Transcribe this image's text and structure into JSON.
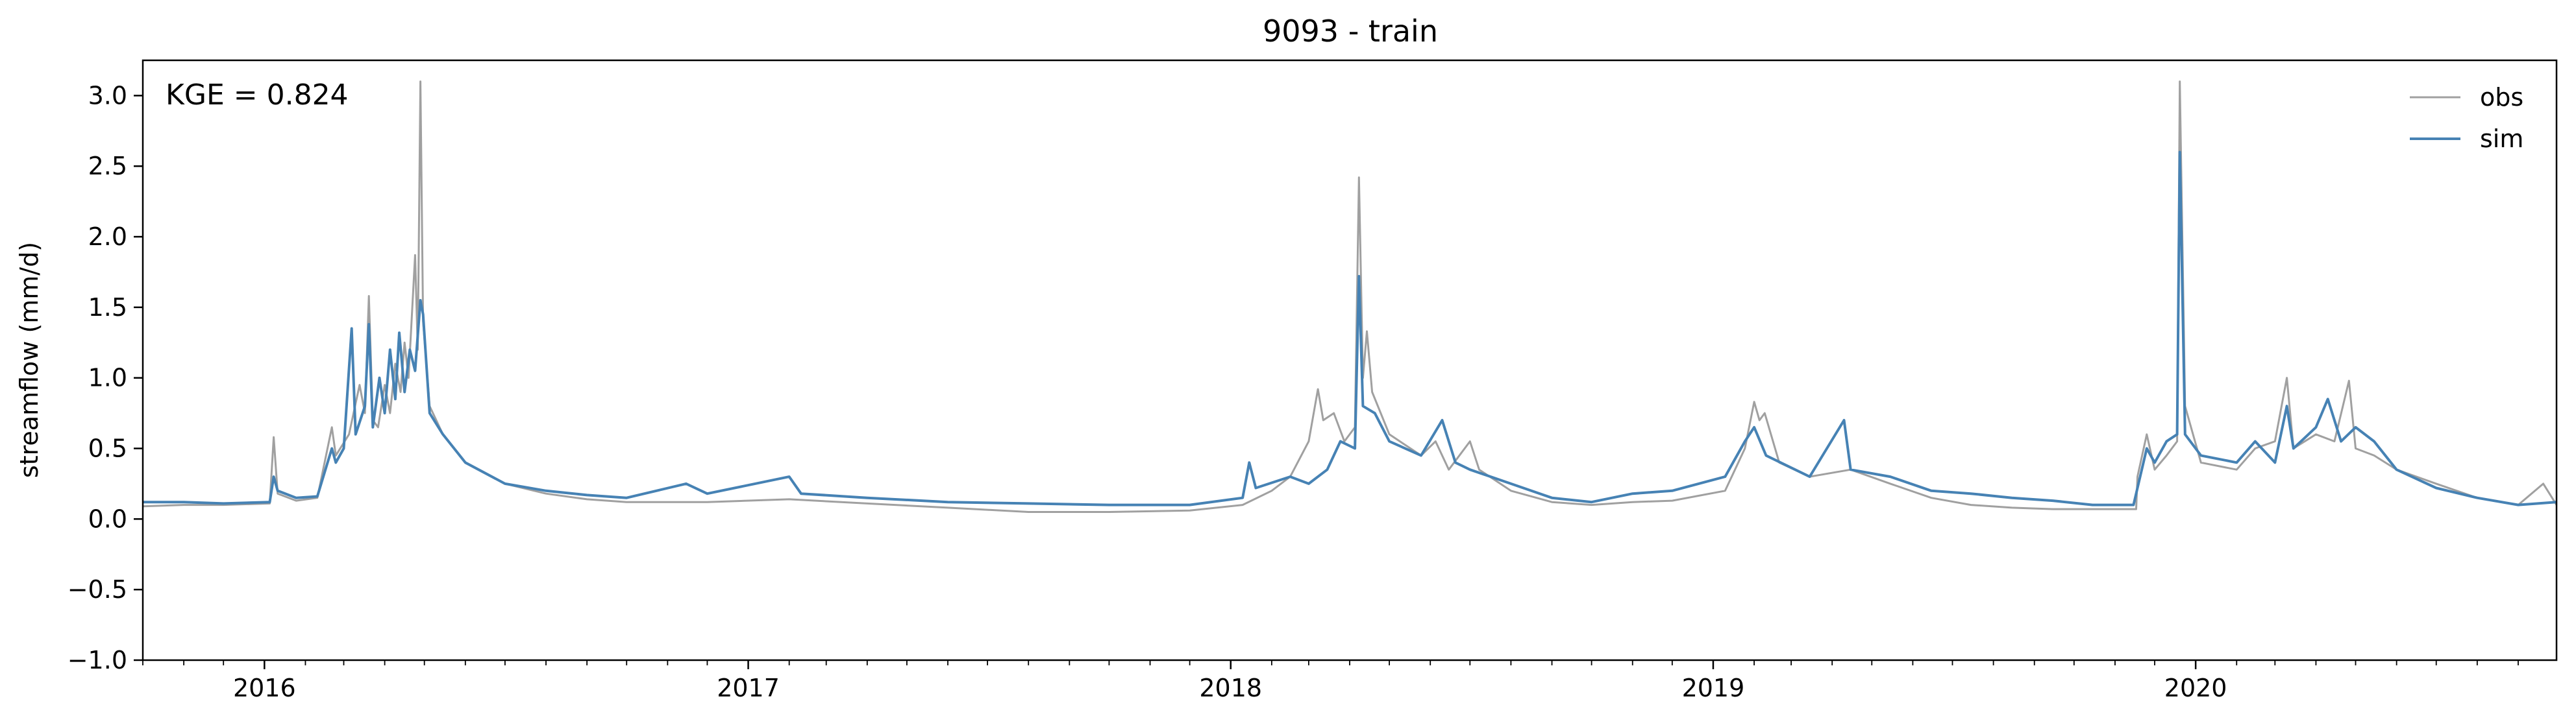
{
  "chart_data": {
    "type": "line",
    "title": "9093 - train",
    "xlabel": "",
    "ylabel": "streamflow (mm/d)",
    "annotation": "KGE = 0.824",
    "xlim": [
      "2015-10-01",
      "2020-09-30"
    ],
    "ylim": [
      -1.0,
      3.25
    ],
    "yticks": [
      -1.0,
      -0.5,
      0.0,
      0.5,
      1.0,
      1.5,
      2.0,
      2.5,
      3.0
    ],
    "ytick_labels": [
      "−1.0",
      "−0.5",
      "0.0",
      "0.5",
      "1.0",
      "1.5",
      "2.0",
      "2.5",
      "3.0"
    ],
    "xticks": [
      "2016-01-01",
      "2017-01-01",
      "2018-01-01",
      "2019-01-01",
      "2020-01-01"
    ],
    "xtick_labels": [
      "2016",
      "2017",
      "2018",
      "2019",
      "2020"
    ],
    "minor_xticks": "monthly",
    "grid": false,
    "legend": "top-right",
    "series": [
      {
        "name": "obs",
        "color": "#a0a0a0",
        "points": [
          [
            "2015-10-01",
            0.09
          ],
          [
            "2015-11-01",
            0.1
          ],
          [
            "2015-12-01",
            0.1
          ],
          [
            "2016-01-05",
            0.11
          ],
          [
            "2016-01-08",
            0.58
          ],
          [
            "2016-01-11",
            0.18
          ],
          [
            "2016-01-25",
            0.13
          ],
          [
            "2016-02-10",
            0.15
          ],
          [
            "2016-02-21",
            0.65
          ],
          [
            "2016-02-24",
            0.45
          ],
          [
            "2016-03-05",
            0.6
          ],
          [
            "2016-03-13",
            0.95
          ],
          [
            "2016-03-17",
            0.75
          ],
          [
            "2016-03-20",
            1.58
          ],
          [
            "2016-03-23",
            0.7
          ],
          [
            "2016-03-27",
            0.65
          ],
          [
            "2016-04-01",
            0.95
          ],
          [
            "2016-04-05",
            0.75
          ],
          [
            "2016-04-09",
            1.1
          ],
          [
            "2016-04-13",
            0.9
          ],
          [
            "2016-04-16",
            1.25
          ],
          [
            "2016-04-19",
            1.0
          ],
          [
            "2016-04-24",
            1.87
          ],
          [
            "2016-04-26",
            1.2
          ],
          [
            "2016-04-28",
            3.1
          ],
          [
            "2016-04-30",
            1.4
          ],
          [
            "2016-05-05",
            0.8
          ],
          [
            "2016-05-15",
            0.6
          ],
          [
            "2016-06-01",
            0.4
          ],
          [
            "2016-07-01",
            0.25
          ],
          [
            "2016-08-01",
            0.18
          ],
          [
            "2016-09-01",
            0.14
          ],
          [
            "2016-10-01",
            0.12
          ],
          [
            "2016-12-01",
            0.12
          ],
          [
            "2017-02-01",
            0.14
          ],
          [
            "2017-04-01",
            0.11
          ],
          [
            "2017-06-01",
            0.08
          ],
          [
            "2017-08-01",
            0.05
          ],
          [
            "2017-10-01",
            0.05
          ],
          [
            "2017-12-01",
            0.06
          ],
          [
            "2018-01-10",
            0.1
          ],
          [
            "2018-02-01",
            0.2
          ],
          [
            "2018-02-15",
            0.3
          ],
          [
            "2018-03-01",
            0.55
          ],
          [
            "2018-03-08",
            0.92
          ],
          [
            "2018-03-12",
            0.7
          ],
          [
            "2018-03-20",
            0.75
          ],
          [
            "2018-03-28",
            0.55
          ],
          [
            "2018-04-05",
            0.65
          ],
          [
            "2018-04-08",
            2.42
          ],
          [
            "2018-04-11",
            1.0
          ],
          [
            "2018-04-14",
            1.33
          ],
          [
            "2018-04-18",
            0.9
          ],
          [
            "2018-05-01",
            0.6
          ],
          [
            "2018-05-25",
            0.45
          ],
          [
            "2018-06-05",
            0.55
          ],
          [
            "2018-06-15",
            0.35
          ],
          [
            "2018-07-01",
            0.55
          ],
          [
            "2018-07-08",
            0.35
          ],
          [
            "2018-08-01",
            0.2
          ],
          [
            "2018-09-01",
            0.12
          ],
          [
            "2018-10-01",
            0.1
          ],
          [
            "2018-11-01",
            0.12
          ],
          [
            "2018-12-01",
            0.13
          ],
          [
            "2019-01-10",
            0.2
          ],
          [
            "2019-01-25",
            0.5
          ],
          [
            "2019-02-01",
            0.83
          ],
          [
            "2019-02-05",
            0.7
          ],
          [
            "2019-02-09",
            0.75
          ],
          [
            "2019-02-20",
            0.4
          ],
          [
            "2019-03-15",
            0.3
          ],
          [
            "2019-04-15",
            0.35
          ],
          [
            "2019-05-15",
            0.25
          ],
          [
            "2019-06-15",
            0.15
          ],
          [
            "2019-07-15",
            0.1
          ],
          [
            "2019-08-15",
            0.08
          ],
          [
            "2019-09-15",
            0.07
          ],
          [
            "2019-11-17",
            0.07
          ],
          [
            "2019-11-18",
            0.3
          ],
          [
            "2019-11-25",
            0.6
          ],
          [
            "2019-12-01",
            0.35
          ],
          [
            "2019-12-10",
            0.45
          ],
          [
            "2019-12-18",
            0.55
          ],
          [
            "2019-12-20",
            3.1
          ],
          [
            "2019-12-24",
            0.8
          ],
          [
            "2020-01-05",
            0.4
          ],
          [
            "2020-02-01",
            0.35
          ],
          [
            "2020-02-15",
            0.5
          ],
          [
            "2020-03-01",
            0.55
          ],
          [
            "2020-03-10",
            1.0
          ],
          [
            "2020-03-15",
            0.5
          ],
          [
            "2020-04-01",
            0.6
          ],
          [
            "2020-04-15",
            0.55
          ],
          [
            "2020-04-26",
            0.98
          ],
          [
            "2020-05-01",
            0.5
          ],
          [
            "2020-05-15",
            0.45
          ],
          [
            "2020-06-01",
            0.35
          ],
          [
            "2020-07-01",
            0.25
          ],
          [
            "2020-08-01",
            0.15
          ],
          [
            "2020-09-01",
            0.1
          ],
          [
            "2020-09-20",
            0.25
          ],
          [
            "2020-09-30",
            0.1
          ]
        ]
      },
      {
        "name": "sim",
        "color": "#4682b4",
        "points": [
          [
            "2015-10-01",
            0.12
          ],
          [
            "2015-11-01",
            0.12
          ],
          [
            "2015-12-01",
            0.11
          ],
          [
            "2016-01-05",
            0.12
          ],
          [
            "2016-01-08",
            0.3
          ],
          [
            "2016-01-11",
            0.2
          ],
          [
            "2016-01-25",
            0.15
          ],
          [
            "2016-02-10",
            0.16
          ],
          [
            "2016-02-21",
            0.5
          ],
          [
            "2016-02-24",
            0.4
          ],
          [
            "2016-03-01",
            0.5
          ],
          [
            "2016-03-07",
            1.35
          ],
          [
            "2016-03-10",
            0.6
          ],
          [
            "2016-03-17",
            0.8
          ],
          [
            "2016-03-20",
            1.38
          ],
          [
            "2016-03-23",
            0.65
          ],
          [
            "2016-03-28",
            1.0
          ],
          [
            "2016-04-01",
            0.75
          ],
          [
            "2016-04-05",
            1.2
          ],
          [
            "2016-04-09",
            0.85
          ],
          [
            "2016-04-12",
            1.32
          ],
          [
            "2016-04-16",
            0.9
          ],
          [
            "2016-04-20",
            1.2
          ],
          [
            "2016-04-24",
            1.05
          ],
          [
            "2016-04-28",
            1.55
          ],
          [
            "2016-04-30",
            1.45
          ],
          [
            "2016-05-05",
            0.75
          ],
          [
            "2016-05-15",
            0.6
          ],
          [
            "2016-06-01",
            0.4
          ],
          [
            "2016-07-01",
            0.25
          ],
          [
            "2016-08-01",
            0.2
          ],
          [
            "2016-09-01",
            0.17
          ],
          [
            "2016-10-01",
            0.15
          ],
          [
            "2016-11-15",
            0.25
          ],
          [
            "2016-12-01",
            0.18
          ],
          [
            "2017-02-01",
            0.3
          ],
          [
            "2017-02-10",
            0.18
          ],
          [
            "2017-04-01",
            0.15
          ],
          [
            "2017-06-01",
            0.12
          ],
          [
            "2017-08-01",
            0.11
          ],
          [
            "2017-10-01",
            0.1
          ],
          [
            "2017-12-01",
            0.1
          ],
          [
            "2018-01-10",
            0.15
          ],
          [
            "2018-01-15",
            0.4
          ],
          [
            "2018-01-20",
            0.22
          ],
          [
            "2018-02-15",
            0.3
          ],
          [
            "2018-03-01",
            0.25
          ],
          [
            "2018-03-15",
            0.35
          ],
          [
            "2018-03-25",
            0.55
          ],
          [
            "2018-04-05",
            0.5
          ],
          [
            "2018-04-08",
            1.72
          ],
          [
            "2018-04-11",
            0.8
          ],
          [
            "2018-04-20",
            0.75
          ],
          [
            "2018-05-01",
            0.55
          ],
          [
            "2018-05-25",
            0.45
          ],
          [
            "2018-06-10",
            0.7
          ],
          [
            "2018-06-20",
            0.4
          ],
          [
            "2018-07-01",
            0.35
          ],
          [
            "2018-08-01",
            0.25
          ],
          [
            "2018-09-01",
            0.15
          ],
          [
            "2018-10-01",
            0.12
          ],
          [
            "2018-11-01",
            0.18
          ],
          [
            "2018-12-01",
            0.2
          ],
          [
            "2019-01-10",
            0.3
          ],
          [
            "2019-01-25",
            0.55
          ],
          [
            "2019-02-01",
            0.65
          ],
          [
            "2019-02-10",
            0.45
          ],
          [
            "2019-03-15",
            0.3
          ],
          [
            "2019-04-10",
            0.7
          ],
          [
            "2019-04-15",
            0.35
          ],
          [
            "2019-05-15",
            0.3
          ],
          [
            "2019-06-15",
            0.2
          ],
          [
            "2019-07-15",
            0.18
          ],
          [
            "2019-08-15",
            0.15
          ],
          [
            "2019-09-15",
            0.13
          ],
          [
            "2019-10-15",
            0.1
          ],
          [
            "2019-11-15",
            0.1
          ],
          [
            "2019-11-25",
            0.5
          ],
          [
            "2019-12-01",
            0.4
          ],
          [
            "2019-12-10",
            0.55
          ],
          [
            "2019-12-18",
            0.6
          ],
          [
            "2019-12-20",
            2.6
          ],
          [
            "2019-12-24",
            0.6
          ],
          [
            "2020-01-05",
            0.45
          ],
          [
            "2020-02-01",
            0.4
          ],
          [
            "2020-02-15",
            0.55
          ],
          [
            "2020-03-01",
            0.4
          ],
          [
            "2020-03-10",
            0.8
          ],
          [
            "2020-03-15",
            0.5
          ],
          [
            "2020-04-01",
            0.65
          ],
          [
            "2020-04-10",
            0.85
          ],
          [
            "2020-04-20",
            0.55
          ],
          [
            "2020-05-01",
            0.65
          ],
          [
            "2020-05-15",
            0.55
          ],
          [
            "2020-06-01",
            0.35
          ],
          [
            "2020-07-01",
            0.22
          ],
          [
            "2020-08-01",
            0.15
          ],
          [
            "2020-09-01",
            0.1
          ],
          [
            "2020-09-30",
            0.12
          ]
        ]
      }
    ]
  }
}
